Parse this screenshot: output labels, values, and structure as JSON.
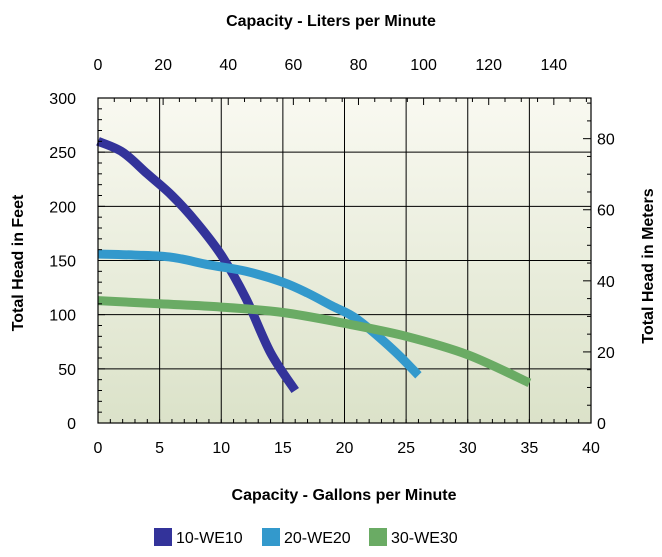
{
  "chart_data": {
    "type": "line",
    "top_axis_title": "Capacity - Liters per Minute",
    "bottom_axis_title": "Capacity - Gallons per Minute",
    "left_axis_title": "Total Head in Feet",
    "right_axis_title": "Total Head in Meters",
    "x_bottom": {
      "label": "Capacity - Gallons per Minute",
      "range": [
        0,
        40
      ],
      "ticks": [
        0,
        5,
        10,
        15,
        20,
        25,
        30,
        35,
        40
      ]
    },
    "x_top": {
      "label": "Capacity - Liters per Minute",
      "ticks": [
        0,
        20,
        40,
        60,
        80,
        100,
        120,
        140
      ]
    },
    "y_left": {
      "label": "Total Head in Feet",
      "range": [
        0,
        300
      ],
      "ticks": [
        0,
        50,
        100,
        150,
        200,
        250,
        300
      ]
    },
    "y_right": {
      "label": "Total Head in Meters",
      "ticks": [
        0,
        20,
        40,
        60,
        80
      ]
    },
    "grid": true,
    "legend_position": "bottom",
    "series": [
      {
        "name": "10-WE10",
        "color": "#33339a",
        "points": [
          [
            0,
            260
          ],
          [
            2,
            250
          ],
          [
            4,
            230
          ],
          [
            6,
            210
          ],
          [
            8,
            185
          ],
          [
            10,
            155
          ],
          [
            12,
            115
          ],
          [
            14,
            65
          ],
          [
            16,
            30
          ]
        ]
      },
      {
        "name": "20-WE20",
        "color": "#3399cc",
        "points": [
          [
            0,
            156
          ],
          [
            3,
            155
          ],
          [
            6,
            153
          ],
          [
            9,
            146
          ],
          [
            12,
            140
          ],
          [
            15,
            130
          ],
          [
            17,
            120
          ],
          [
            19,
            108
          ],
          [
            21,
            96
          ],
          [
            24,
            67
          ],
          [
            26,
            44
          ]
        ]
      },
      {
        "name": "30-WE30",
        "color": "#6aab64",
        "points": [
          [
            0,
            113
          ],
          [
            5,
            110
          ],
          [
            10,
            107
          ],
          [
            15,
            102
          ],
          [
            20,
            92
          ],
          [
            25,
            80
          ],
          [
            30,
            63
          ],
          [
            35,
            37
          ]
        ]
      }
    ]
  }
}
